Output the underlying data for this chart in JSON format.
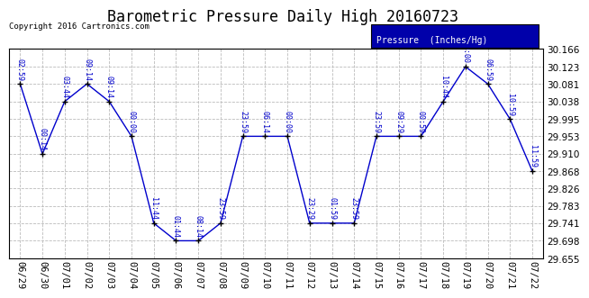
{
  "title": "Barometric Pressure Daily High 20160723",
  "copyright": "Copyright 2016 Cartronics.com",
  "legend_label": "Pressure  (Inches/Hg)",
  "background_color": "#ffffff",
  "line_color": "#0000cc",
  "marker_color": "#000000",
  "grid_color": "#bbbbbb",
  "text_color": "#0000cc",
  "legend_box_color": "#0000aa",
  "legend_text_color": "#ffffff",
  "ylim": [
    29.655,
    30.166
  ],
  "ytick_values": [
    29.655,
    29.698,
    29.741,
    29.783,
    29.826,
    29.868,
    29.91,
    29.953,
    29.995,
    30.038,
    30.081,
    30.123,
    30.166
  ],
  "dates": [
    "06/29",
    "06/30",
    "07/01",
    "07/02",
    "07/03",
    "07/04",
    "07/05",
    "07/06",
    "07/07",
    "07/08",
    "07/09",
    "07/10",
    "07/11",
    "07/12",
    "07/13",
    "07/14",
    "07/15",
    "07/16",
    "07/17",
    "07/18",
    "07/19",
    "07/20",
    "07/21",
    "07/22"
  ],
  "values": [
    30.081,
    29.91,
    30.038,
    30.081,
    30.038,
    29.953,
    29.741,
    29.698,
    29.698,
    29.741,
    29.953,
    29.953,
    29.953,
    29.741,
    29.741,
    29.741,
    29.953,
    29.953,
    29.953,
    30.038,
    30.123,
    30.081,
    29.995,
    29.868
  ],
  "point_labels": [
    "02:59",
    "00:14",
    "03:44",
    "09:14",
    "09:14",
    "00:00",
    "11:44",
    "01:44",
    "08:14",
    "23:59",
    "23:59",
    "06:14",
    "00:00",
    "23:29",
    "01:59",
    "23:59",
    "23:59",
    "09:29",
    "00:59",
    "10:44",
    "09:00",
    "06:59",
    "10:59",
    "11:59"
  ],
  "title_fontsize": 12,
  "label_fontsize": 6,
  "tick_fontsize": 7.5,
  "copyright_fontsize": 6.5
}
